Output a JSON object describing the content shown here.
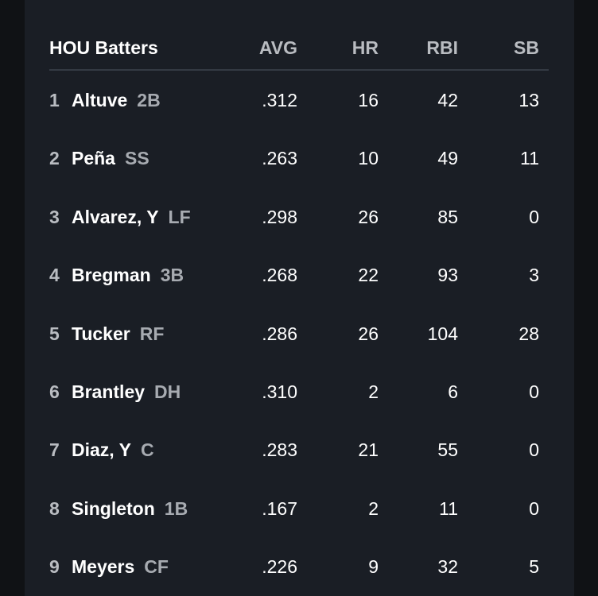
{
  "header": {
    "title": "HOU Batters",
    "columns": [
      "AVG",
      "HR",
      "RBI",
      "SB"
    ]
  },
  "rows": [
    {
      "order": "1",
      "name": "Altuve",
      "pos": "2B",
      "avg": ".312",
      "hr": "16",
      "rbi": "42",
      "sb": "13"
    },
    {
      "order": "2",
      "name": "Peña",
      "pos": "SS",
      "avg": ".263",
      "hr": "10",
      "rbi": "49",
      "sb": "11"
    },
    {
      "order": "3",
      "name": "Alvarez, Y",
      "pos": "LF",
      "avg": ".298",
      "hr": "26",
      "rbi": "85",
      "sb": "0"
    },
    {
      "order": "4",
      "name": "Bregman",
      "pos": "3B",
      "avg": ".268",
      "hr": "22",
      "rbi": "93",
      "sb": "3"
    },
    {
      "order": "5",
      "name": "Tucker",
      "pos": "RF",
      "avg": ".286",
      "hr": "26",
      "rbi": "104",
      "sb": "28"
    },
    {
      "order": "6",
      "name": "Brantley",
      "pos": "DH",
      "avg": ".310",
      "hr": "2",
      "rbi": "6",
      "sb": "0"
    },
    {
      "order": "7",
      "name": "Diaz, Y",
      "pos": "C",
      "avg": ".283",
      "hr": "21",
      "rbi": "55",
      "sb": "0"
    },
    {
      "order": "8",
      "name": "Singleton",
      "pos": "1B",
      "avg": ".167",
      "hr": "2",
      "rbi": "11",
      "sb": "0"
    },
    {
      "order": "9",
      "name": "Meyers",
      "pos": "CF",
      "avg": ".226",
      "hr": "9",
      "rbi": "32",
      "sb": "5"
    }
  ]
}
